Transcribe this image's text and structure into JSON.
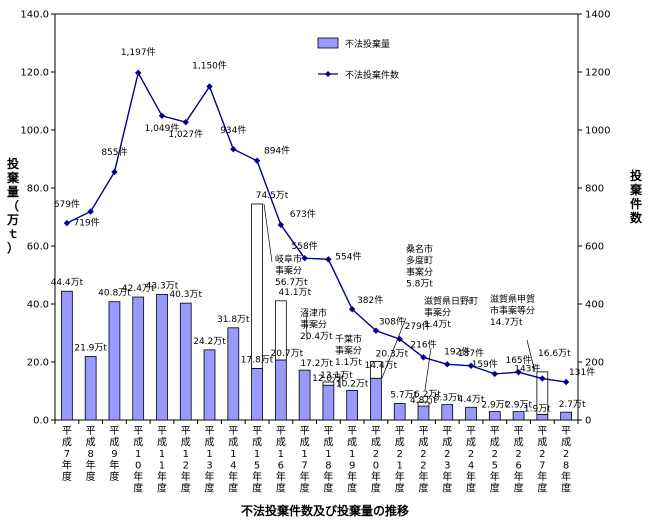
{
  "chart_data": {
    "type": "bar",
    "title": "不法投棄件数及び投棄量の推移",
    "ylabel_left": "投棄量（万ｔ）",
    "ylabel_right": "投棄件数",
    "ylim_left": [
      0,
      140
    ],
    "ylim_right": [
      0,
      1400
    ],
    "yticks_left": [
      "0.0",
      "20.0",
      "40.0",
      "60.0",
      "80.0",
      "100.0",
      "120.0",
      "140.0"
    ],
    "yticks_right": [
      "0",
      "200",
      "400",
      "600",
      "800",
      "1000",
      "1200",
      "1400"
    ],
    "categories": [
      "平成7年度",
      "平成8年度",
      "平成9年度",
      "平成10年度",
      "平成11年度",
      "平成12年度",
      "平成13年度",
      "平成14年度",
      "平成15年度",
      "平成16年度",
      "平成17年度",
      "平成18年度",
      "平成19年度",
      "平成20年度",
      "平成21年度",
      "平成22年度",
      "平成23年度",
      "平成24年度",
      "平成25年度",
      "平成26年度",
      "平成27年度",
      "平成28年度"
    ],
    "legend": [
      "不法投棄量",
      "不法投棄件数"
    ],
    "bars": {
      "name": "不法投棄量",
      "values": [
        44.4,
        21.9,
        40.8,
        42.4,
        43.3,
        40.3,
        24.2,
        31.8,
        17.8,
        20.7,
        17.2,
        12.0,
        10.2,
        14.4,
        5.7,
        4.8,
        5.3,
        4.4,
        2.9,
        2.9,
        1.9,
        2.7
      ],
      "labels": [
        "44.4万t",
        "21.9万t",
        "40.8万t",
        "42.4万t",
        "43.3万t",
        "40.3万t",
        "24.2万t",
        "31.8万t",
        "17.8万t",
        "20.7万t",
        "17.2万t",
        "12.0万t",
        "10.2万t",
        "14.4万t",
        "5.7万t",
        "4.8万t",
        "5.3万t",
        "4.4万t",
        "2.9万t",
        "2.9万t",
        "1.9万t",
        "2.7万t"
      ]
    },
    "special_segments": [
      {
        "index": 8,
        "value": 56.7
      },
      {
        "index": 9,
        "value": 20.4
      },
      {
        "index": 11,
        "value": 1.1
      },
      {
        "index": 13,
        "value": 5.8
      },
      {
        "index": 15,
        "value": 1.4
      },
      {
        "index": 20,
        "value": 14.7
      }
    ],
    "totals": [
      {
        "index": 8,
        "label": "74.5万t"
      },
      {
        "index": 9,
        "label": "41.1万t"
      },
      {
        "index": 11,
        "label": "13.1万t"
      },
      {
        "index": 13,
        "label": "20.3万t"
      },
      {
        "index": 15,
        "label": "6.2万t"
      },
      {
        "index": 20,
        "label": "16.6万t"
      }
    ],
    "annotations": [
      {
        "index": 8,
        "lines": [
          "岐阜市",
          "事案分",
          "56.7万t"
        ]
      },
      {
        "index": 9,
        "lines": [
          "沼津市",
          "事案分",
          "20.4万t"
        ]
      },
      {
        "index": 11,
        "lines": [
          "千葉市",
          "事案分",
          "1.1万t"
        ]
      },
      {
        "index": 13,
        "lines": [
          "桑名市",
          "多度町",
          "事案分",
          "5.8万t"
        ]
      },
      {
        "index": 15,
        "lines": [
          "滋賀県日野町",
          "事案分",
          "1.4万t"
        ]
      },
      {
        "index": 20,
        "lines": [
          "滋賀県甲賀",
          "市事案等分",
          "14.7万t"
        ]
      }
    ],
    "line": {
      "name": "不法投棄件数",
      "values": [
        679,
        719,
        855,
        1197,
        1049,
        1027,
        1150,
        934,
        894,
        673,
        558,
        554,
        382,
        308,
        279,
        216,
        192,
        187,
        159,
        165,
        143,
        131
      ],
      "labels": [
        "679件",
        "719件",
        "855件",
        "1,197件",
        "1,049件",
        "1,027件",
        "1,150件",
        "934件",
        "894件",
        "673件",
        "558件",
        "554件",
        "382件",
        "308件",
        "279件",
        "216件",
        "192件",
        "187件",
        "159件",
        "165件",
        "143件",
        "131件"
      ]
    },
    "grid": false,
    "legend_position": "top-right"
  }
}
